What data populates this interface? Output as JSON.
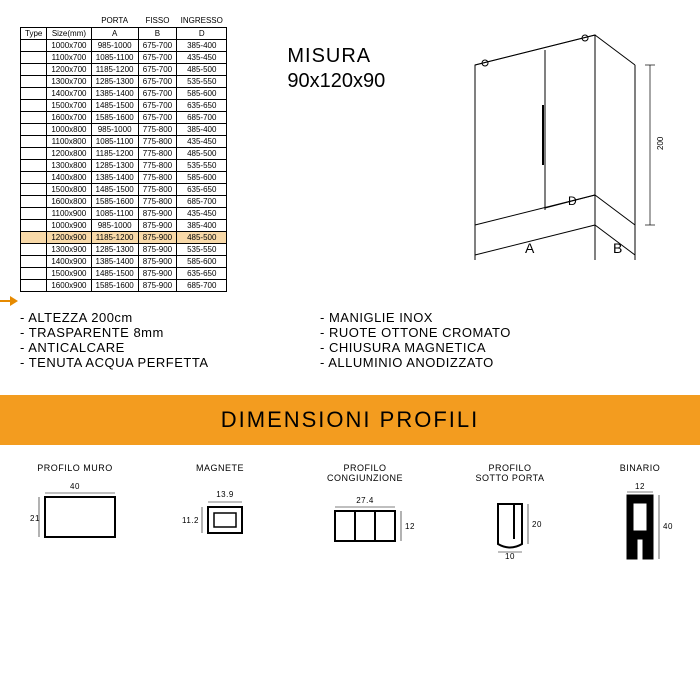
{
  "colors": {
    "highlight_bg": "#f8d9a8",
    "arrow": "#e68a00",
    "band": "#f39c1f",
    "line": "#000"
  },
  "table": {
    "group_headers": {
      "porta": "PORTA",
      "fisso": "FISSO",
      "ingresso": "INGRESSO"
    },
    "headers": {
      "type": "Type",
      "size": "Size(mm)",
      "a": "A",
      "b": "B",
      "d": "D"
    },
    "highlight_index": 16,
    "rows": [
      {
        "size": "1000x700",
        "a": "985-1000",
        "b": "675-700",
        "d": "385-400"
      },
      {
        "size": "1100x700",
        "a": "1085-1100",
        "b": "675-700",
        "d": "435-450"
      },
      {
        "size": "1200x700",
        "a": "1185-1200",
        "b": "675-700",
        "d": "485-500"
      },
      {
        "size": "1300x700",
        "a": "1285-1300",
        "b": "675-700",
        "d": "535-550"
      },
      {
        "size": "1400x700",
        "a": "1385-1400",
        "b": "675-700",
        "d": "585-600"
      },
      {
        "size": "1500x700",
        "a": "1485-1500",
        "b": "675-700",
        "d": "635-650"
      },
      {
        "size": "1600x700",
        "a": "1585-1600",
        "b": "675-700",
        "d": "685-700"
      },
      {
        "size": "1000x800",
        "a": "985-1000",
        "b": "775-800",
        "d": "385-400"
      },
      {
        "size": "1100x800",
        "a": "1085-1100",
        "b": "775-800",
        "d": "435-450"
      },
      {
        "size": "1200x800",
        "a": "1185-1200",
        "b": "775-800",
        "d": "485-500"
      },
      {
        "size": "1300x800",
        "a": "1285-1300",
        "b": "775-800",
        "d": "535-550"
      },
      {
        "size": "1400x800",
        "a": "1385-1400",
        "b": "775-800",
        "d": "585-600"
      },
      {
        "size": "1500x800",
        "a": "1485-1500",
        "b": "775-800",
        "d": "635-650"
      },
      {
        "size": "1600x800",
        "a": "1585-1600",
        "b": "775-800",
        "d": "685-700"
      },
      {
        "size": "1100x900",
        "a": "1085-1100",
        "b": "875-900",
        "d": "435-450"
      },
      {
        "size": "1000x900",
        "a": "985-1000",
        "b": "875-900",
        "d": "385-400"
      },
      {
        "size": "1200x900",
        "a": "1185-1200",
        "b": "875-900",
        "d": "485-500"
      },
      {
        "size": "1300x900",
        "a": "1285-1300",
        "b": "875-900",
        "d": "535-550"
      },
      {
        "size": "1400x900",
        "a": "1385-1400",
        "b": "875-900",
        "d": "585-600"
      },
      {
        "size": "1500x900",
        "a": "1485-1500",
        "b": "875-900",
        "d": "635-650"
      },
      {
        "size": "1600x900",
        "a": "1585-1600",
        "b": "875-900",
        "d": "685-700"
      }
    ]
  },
  "misura": {
    "label": "MISURA",
    "value": "90x120x90"
  },
  "iso": {
    "height_label": "200",
    "A": "A",
    "B": "B",
    "D": "D"
  },
  "features_left": [
    "ALTEZZA 200cm",
    "TRASPARENTE 8mm",
    "ANTICALCARE",
    "TENUTA ACQUA PERFETTA"
  ],
  "features_right": [
    "MANIGLIE INOX",
    "RUOTE OTTONE CROMATO",
    "CHIUSURA MAGNETICA",
    "ALLUMINIO ANODIZZATO"
  ],
  "band_title": "DIMENSIONI PROFILI",
  "profiles": {
    "muro": {
      "label": "PROFILO MURO",
      "w": "40",
      "h": "21"
    },
    "magnete": {
      "label": "MAGNETE",
      "w": "13.9",
      "h": "11.2"
    },
    "cong": {
      "label": "PROFILO\nCONGIUNZIONE",
      "w": "27.4",
      "h": "12.1"
    },
    "sotto": {
      "label": "PROFILO\nSOTTO PORTA",
      "w": "10",
      "h": "20"
    },
    "binario": {
      "label": "BINARIO",
      "w": "12",
      "h": "40"
    }
  }
}
